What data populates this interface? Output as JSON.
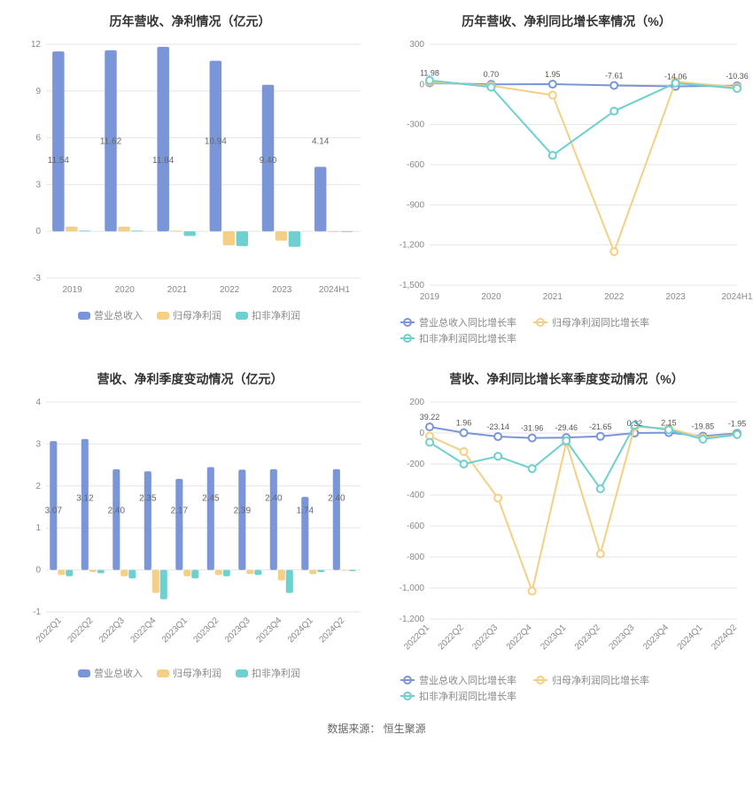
{
  "source_label": "数据来源：",
  "source_value": "恒生聚源",
  "colors": {
    "blue": "#7a96d8",
    "yellow": "#f4cf86",
    "teal": "#6ed0cf",
    "grid": "#e6e6e6",
    "axis_text": "#888888",
    "bar_label": "#666666",
    "point_label": "#555555",
    "title": "#333333",
    "bg": "#ffffff"
  },
  "chart1": {
    "title": "历年营收、净利情况（亿元）",
    "type": "bar",
    "categories": [
      "2019",
      "2020",
      "2021",
      "2022",
      "2023",
      "2024H1"
    ],
    "ylim": [
      -3,
      12
    ],
    "ytick_step": 3,
    "series": [
      {
        "name": "营业总收入",
        "color_key": "blue",
        "values": [
          11.54,
          11.62,
          11.84,
          10.94,
          9.4,
          4.14
        ]
      },
      {
        "name": "归母净利润",
        "color_key": "yellow",
        "values": [
          0.3,
          0.3,
          0.05,
          -0.9,
          -0.6,
          -0.05
        ]
      },
      {
        "name": "扣非净利润",
        "color_key": "teal",
        "values": [
          0.05,
          0.05,
          -0.3,
          -0.95,
          -1.0,
          -0.05
        ]
      }
    ],
    "show_labels_series_index": 0,
    "label_band": [
      3,
      7
    ],
    "legend": [
      "营业总收入",
      "归母净利润",
      "扣非净利润"
    ]
  },
  "chart2": {
    "title": "历年营收、净利同比增长率情况（%）",
    "type": "line",
    "categories": [
      "2019",
      "2020",
      "2021",
      "2022",
      "2023",
      "2024H1"
    ],
    "ylim": [
      -1500,
      300
    ],
    "ytick_step": 300,
    "series": [
      {
        "name": "营业总收入同比增长率",
        "color_key": "blue",
        "values": [
          11.98,
          0.7,
          1.95,
          -7.61,
          -14.06,
          -10.36
        ]
      },
      {
        "name": "归母净利润同比增长率",
        "color_key": "yellow",
        "values": [
          20,
          -10,
          -80,
          -1250,
          20,
          -20
        ]
      },
      {
        "name": "扣非净利润同比增长率",
        "color_key": "teal",
        "values": [
          30,
          -20,
          -530,
          -200,
          10,
          -30
        ]
      }
    ],
    "show_labels_series_index": 0,
    "legend": [
      "营业总收入同比增长率",
      "归母净利润同比增长率",
      "扣非净利润同比增长率"
    ]
  },
  "chart3": {
    "title": "营收、净利季度变动情况（亿元）",
    "type": "bar",
    "categories": [
      "2022Q1",
      "2022Q2",
      "2022Q3",
      "2022Q4",
      "2023Q1",
      "2023Q2",
      "2023Q3",
      "2023Q4",
      "2024Q1",
      "2024Q2"
    ],
    "ylim": [
      -1,
      4
    ],
    "ytick_step": 1,
    "rotate_x": true,
    "series": [
      {
        "name": "营业总收入",
        "color_key": "blue",
        "values": [
          3.07,
          3.12,
          2.4,
          2.35,
          2.17,
          2.45,
          2.39,
          2.4,
          1.74,
          2.4
        ]
      },
      {
        "name": "归母净利润",
        "color_key": "yellow",
        "values": [
          -0.12,
          -0.05,
          -0.15,
          -0.55,
          -0.15,
          -0.12,
          -0.1,
          -0.25,
          -0.1,
          -0.02
        ]
      },
      {
        "name": "扣非净利润",
        "color_key": "teal",
        "values": [
          -0.15,
          -0.08,
          -0.2,
          -0.7,
          -0.2,
          -0.15,
          -0.12,
          -0.55,
          -0.05,
          -0.03
        ]
      }
    ],
    "show_labels_series_index": 0,
    "label_band": [
      1,
      2
    ],
    "legend": [
      "营业总收入",
      "归母净利润",
      "扣非净利润"
    ]
  },
  "chart4": {
    "title": "营收、净利同比增长率季度变动情况（%）",
    "type": "line",
    "categories": [
      "2022Q1",
      "2022Q2",
      "2022Q3",
      "2022Q4",
      "2023Q1",
      "2023Q2",
      "2023Q3",
      "2023Q4",
      "2024Q1",
      "2024Q2"
    ],
    "ylim": [
      -1200,
      200
    ],
    "ytick_step": 200,
    "rotate_x": true,
    "series": [
      {
        "name": "营业总收入同比增长率",
        "color_key": "blue",
        "values": [
          39.22,
          1.96,
          -23.14,
          -31.96,
          -29.46,
          -21.65,
          0.32,
          2.15,
          -19.85,
          -1.95
        ]
      },
      {
        "name": "归母净利润同比增长率",
        "color_key": "yellow",
        "values": [
          -20,
          -120,
          -420,
          -1020,
          -60,
          -780,
          40,
          30,
          -30,
          -10
        ]
      },
      {
        "name": "扣非净利润同比增长率",
        "color_key": "teal",
        "values": [
          -60,
          -200,
          -150,
          -230,
          -50,
          -360,
          50,
          20,
          -40,
          -10
        ]
      }
    ],
    "show_labels_series_index": 0,
    "legend": [
      "营业总收入同比增长率",
      "归母净利润同比增长率",
      "扣非净利润同比增长率"
    ]
  }
}
